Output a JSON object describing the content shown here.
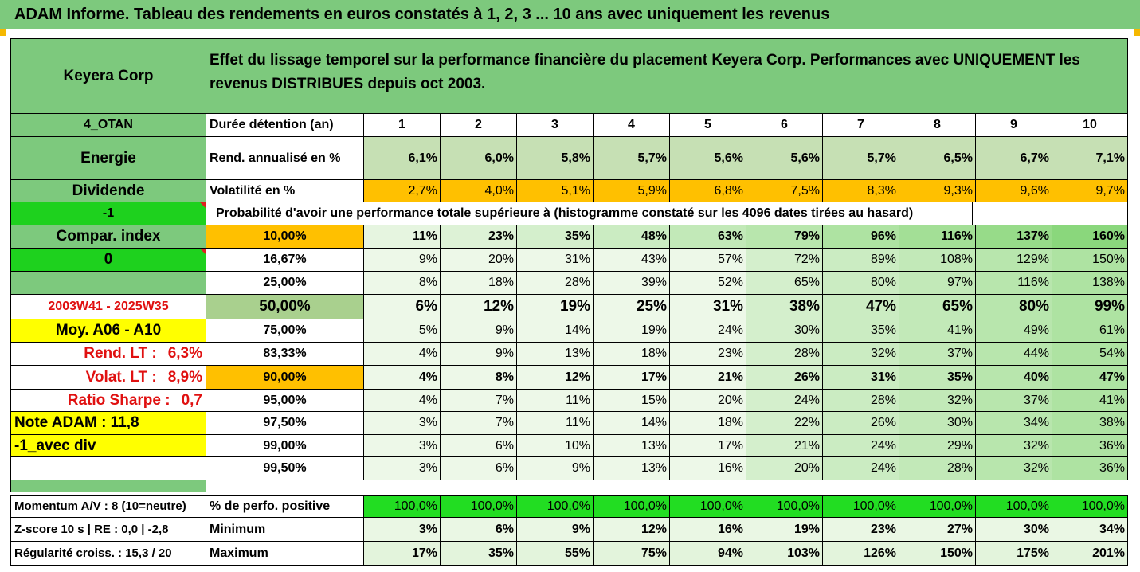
{
  "title": "ADAM Informe. Tableau des rendements en euros constatés à 1, 2, 3 ... 10 ans avec uniquement les revenus",
  "company": "Keyera Corp",
  "description": "Effet du lissage temporel sur la performance financière du placement Keyera Corp. Performances avec UNIQUEMENT les revenus DISTRIBUES depuis oct 2003.",
  "left_labels": {
    "code": "4_OTAN",
    "sector": "Energie",
    "type": "Dividende",
    "minus_one": "-1",
    "compar_index": "Compar. index",
    "zero": "0",
    "period": "2003W41 - 2025W35",
    "moy": "Moy. A06 - A10",
    "rend_lt_label": "Rend. LT :",
    "rend_lt_value": "6,3%",
    "volat_lt_label": "Volat. LT :",
    "volat_lt_value": "8,9%",
    "sharpe_label": "Ratio Sharpe :",
    "sharpe_value": "0,7",
    "note": "Note ADAM : 11,8",
    "avec_div": "-1_avec div",
    "momentum": "Momentum A/V : 8 (10=neutre)",
    "zscore": "Z-score 10 s  | RE : 0,0 | -2,8",
    "regularite": "Régularité croiss. : 15,3 / 20"
  },
  "row_labels": {
    "duree": "Durée détention (an)",
    "rend": "Rend. annualisé en %",
    "vol": "Volatilité en %",
    "proba": "Probabilité d'avoir une performance totale supérieure à (histogramme constaté sur les 4096 dates tirées au hasard)",
    "perf_pos": "% de perfo. positive",
    "minimum": "Minimum",
    "maximum": "Maximum"
  },
  "years": [
    "1",
    "2",
    "3",
    "4",
    "5",
    "6",
    "7",
    "8",
    "9",
    "10"
  ],
  "rend": [
    "6,1%",
    "6,0%",
    "5,8%",
    "5,7%",
    "5,6%",
    "5,6%",
    "5,7%",
    "6,5%",
    "6,7%",
    "7,1%"
  ],
  "vol": [
    "2,7%",
    "4,0%",
    "5,1%",
    "5,9%",
    "6,8%",
    "7,5%",
    "8,3%",
    "9,3%",
    "9,6%",
    "9,7%"
  ],
  "prob_rows": [
    {
      "p": "10,00%",
      "v": [
        "11%",
        "23%",
        "35%",
        "48%",
        "63%",
        "79%",
        "96%",
        "116%",
        "137%",
        "160%"
      ]
    },
    {
      "p": "16,67%",
      "v": [
        "9%",
        "20%",
        "31%",
        "43%",
        "57%",
        "72%",
        "89%",
        "108%",
        "129%",
        "150%"
      ]
    },
    {
      "p": "25,00%",
      "v": [
        "8%",
        "18%",
        "28%",
        "39%",
        "52%",
        "65%",
        "80%",
        "97%",
        "116%",
        "138%"
      ]
    },
    {
      "p": "50,00%",
      "v": [
        "6%",
        "12%",
        "19%",
        "25%",
        "31%",
        "38%",
        "47%",
        "65%",
        "80%",
        "99%"
      ]
    },
    {
      "p": "75,00%",
      "v": [
        "5%",
        "9%",
        "14%",
        "19%",
        "24%",
        "30%",
        "35%",
        "41%",
        "49%",
        "61%"
      ]
    },
    {
      "p": "83,33%",
      "v": [
        "4%",
        "9%",
        "13%",
        "18%",
        "23%",
        "28%",
        "32%",
        "37%",
        "44%",
        "54%"
      ]
    },
    {
      "p": "90,00%",
      "v": [
        "4%",
        "8%",
        "12%",
        "17%",
        "21%",
        "26%",
        "31%",
        "35%",
        "40%",
        "47%"
      ]
    },
    {
      "p": "95,00%",
      "v": [
        "4%",
        "7%",
        "11%",
        "15%",
        "20%",
        "24%",
        "28%",
        "32%",
        "37%",
        "41%"
      ]
    },
    {
      "p": "97,50%",
      "v": [
        "3%",
        "7%",
        "11%",
        "14%",
        "18%",
        "22%",
        "26%",
        "30%",
        "34%",
        "38%"
      ]
    },
    {
      "p": "99,00%",
      "v": [
        "3%",
        "6%",
        "10%",
        "13%",
        "17%",
        "21%",
        "24%",
        "29%",
        "32%",
        "36%"
      ]
    },
    {
      "p": "99,50%",
      "v": [
        "3%",
        "6%",
        "9%",
        "13%",
        "16%",
        "20%",
        "24%",
        "28%",
        "32%",
        "36%"
      ]
    }
  ],
  "perf_pos": [
    "100,0%",
    "100,0%",
    "100,0%",
    "100,0%",
    "100,0%",
    "100,0%",
    "100,0%",
    "100,0%",
    "100,0%",
    "100,0%"
  ],
  "minimum": [
    "3%",
    "6%",
    "9%",
    "12%",
    "16%",
    "19%",
    "23%",
    "27%",
    "30%",
    "34%"
  ],
  "maximum": [
    "17%",
    "35%",
    "55%",
    "75%",
    "94%",
    "103%",
    "126%",
    "150%",
    "175%",
    "201%"
  ],
  "colors": {
    "header_green": "#7dc97d",
    "bright_green": "#1ed11e",
    "orange": "#ffc000",
    "yellow": "#ffff00",
    "light_olive": "#c6e0b4",
    "olive": "#a9d08e",
    "perf_green": "#22dd22",
    "red_text": "#e01010"
  }
}
